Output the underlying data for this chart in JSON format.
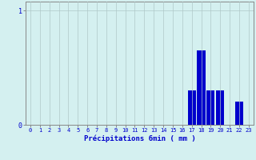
{
  "title": "",
  "xlabel": "Précipitations 6min ( mm )",
  "categories": [
    0,
    1,
    2,
    3,
    4,
    5,
    6,
    7,
    8,
    9,
    10,
    11,
    12,
    13,
    14,
    15,
    16,
    17,
    18,
    19,
    20,
    21,
    22,
    23
  ],
  "values": [
    0,
    0,
    0,
    0,
    0,
    0,
    0,
    0,
    0,
    0,
    0,
    0,
    0,
    0,
    0,
    0,
    0,
    0.3,
    0.65,
    0.3,
    0.3,
    0,
    0.2,
    0
  ],
  "bar_color": "#0000cc",
  "background_color": "#d4f0f0",
  "grid_color": "#b0c8c8",
  "axis_color": "#888888",
  "text_color": "#0000cc",
  "ylim": [
    0,
    1.08
  ],
  "yticks": [
    0,
    1
  ],
  "xlim": [
    -0.5,
    23.5
  ],
  "xlabel_fontsize": 6.5,
  "tick_fontsize": 5.0
}
